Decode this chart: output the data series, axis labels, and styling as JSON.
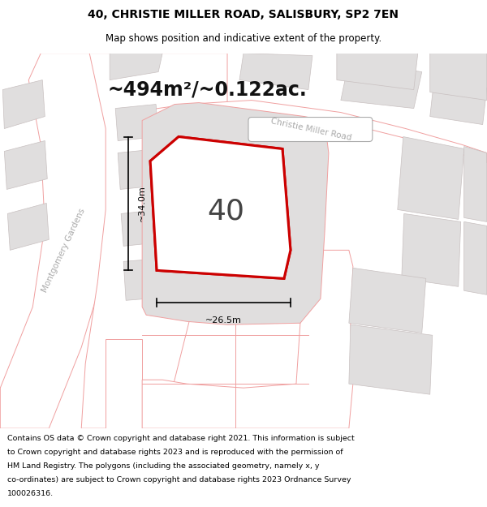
{
  "title_line1": "40, CHRISTIE MILLER ROAD, SALISBURY, SP2 7EN",
  "title_line2": "Map shows position and indicative extent of the property.",
  "area_text": "~494m²/~0.122ac.",
  "plot_number": "40",
  "dim_vertical": "~34.0m",
  "dim_horizontal": "~26.5m",
  "road_label": "Christie Miller Road",
  "street_label": "Montgomery Gardens",
  "footer_lines": [
    "Contains OS data © Crown copyright and database right 2021. This information is subject",
    "to Crown copyright and database rights 2023 and is reproduced with the permission of",
    "HM Land Registry. The polygons (including the associated geometry, namely x, y",
    "co-ordinates) are subject to Crown copyright and database rights 2023 Ordnance Survey",
    "100026316."
  ],
  "map_bg": "#ffffff",
  "plot_fill": "#ffffff",
  "plot_outline": "#cc0000",
  "outline_color": "#f0a0a0",
  "building_fill": "#e0dede",
  "building_outline": "#c8c0c0",
  "road_label_color": "#aaaaaa",
  "dim_color": "#000000"
}
